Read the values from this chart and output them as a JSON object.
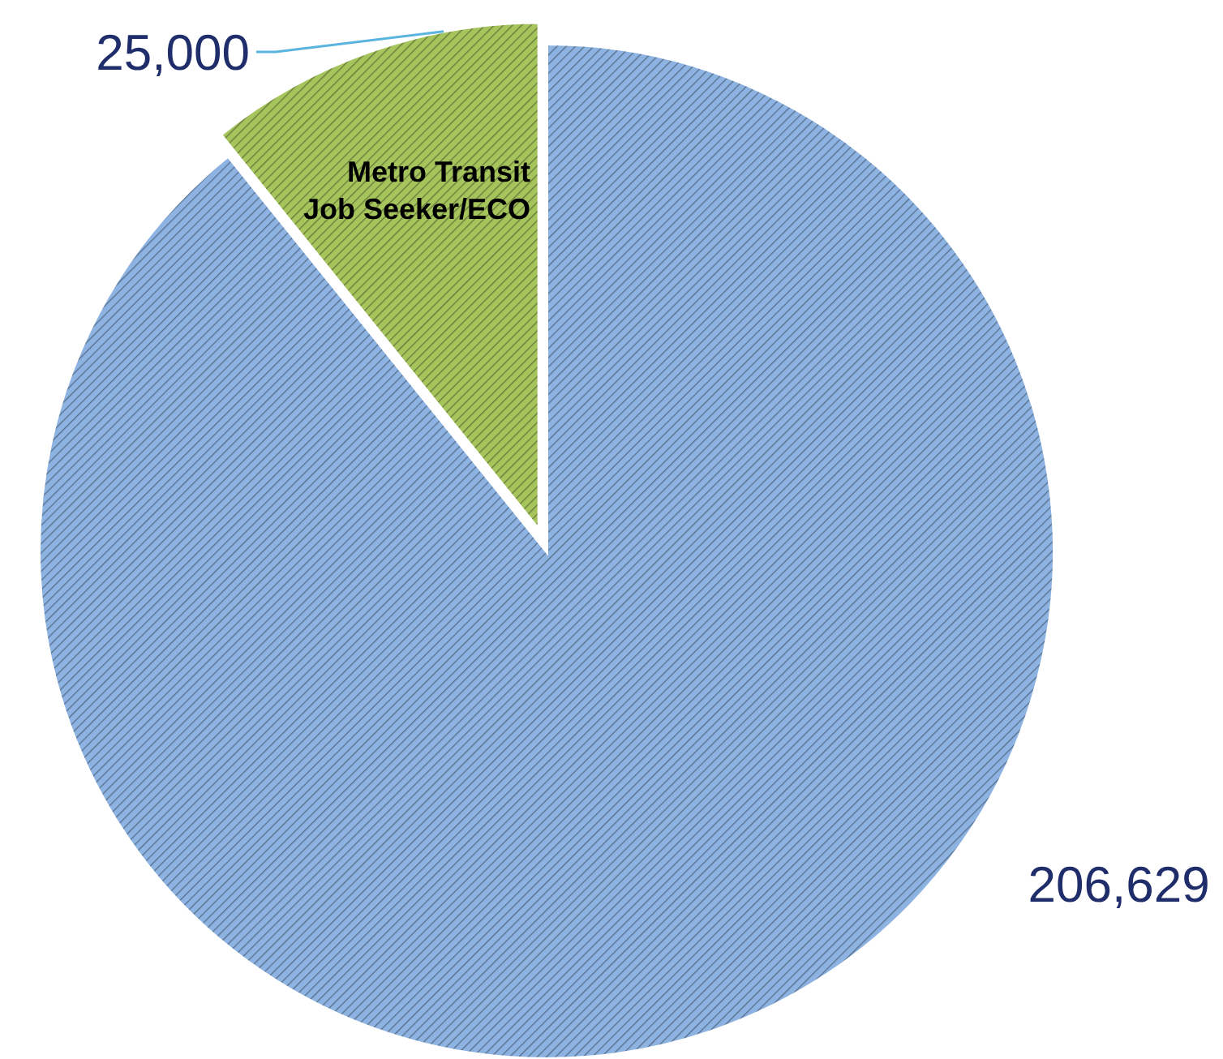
{
  "chart_data": {
    "type": "pie",
    "categories": [
      null,
      "Metro Transit Job Seeker/ECO"
    ],
    "values": [
      206629,
      25000
    ],
    "value_labels": [
      "206,629",
      "25,000"
    ],
    "colors": [
      "#8db3e2",
      "#a6c45c"
    ]
  }
}
